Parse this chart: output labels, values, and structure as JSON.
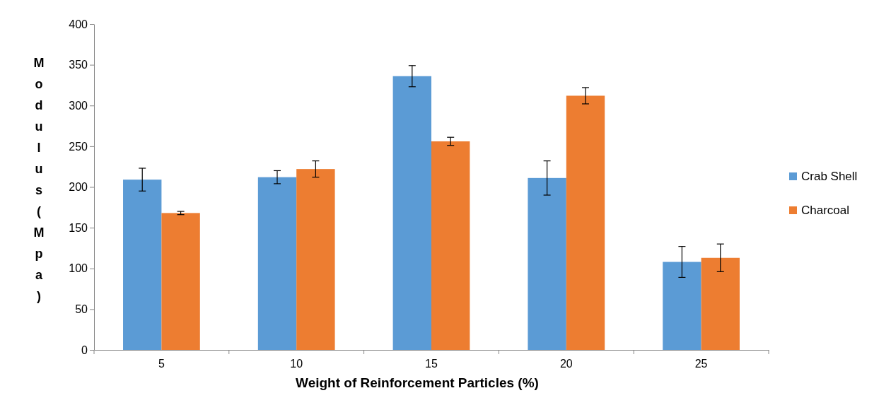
{
  "chart_data": {
    "type": "bar",
    "xlabel": "Weight of Reinforcement Particles (%)",
    "ylabel": "Modulus (Mpa)",
    "categories": [
      "5",
      "10",
      "15",
      "20",
      "25"
    ],
    "series": [
      {
        "name": "Crab Shell",
        "color": "#5b9bd5",
        "values": [
          209,
          212,
          336,
          211,
          108
        ],
        "errors": [
          14,
          8,
          13,
          21,
          19
        ]
      },
      {
        "name": "Charcoal",
        "color": "#ed7d31",
        "values": [
          168,
          222,
          256,
          312,
          113
        ],
        "errors": [
          2,
          10,
          5,
          10,
          17
        ]
      }
    ],
    "ylim": [
      0,
      400
    ],
    "yticks": [
      0,
      50,
      100,
      150,
      200,
      250,
      300,
      350,
      400
    ],
    "legend": "right"
  }
}
